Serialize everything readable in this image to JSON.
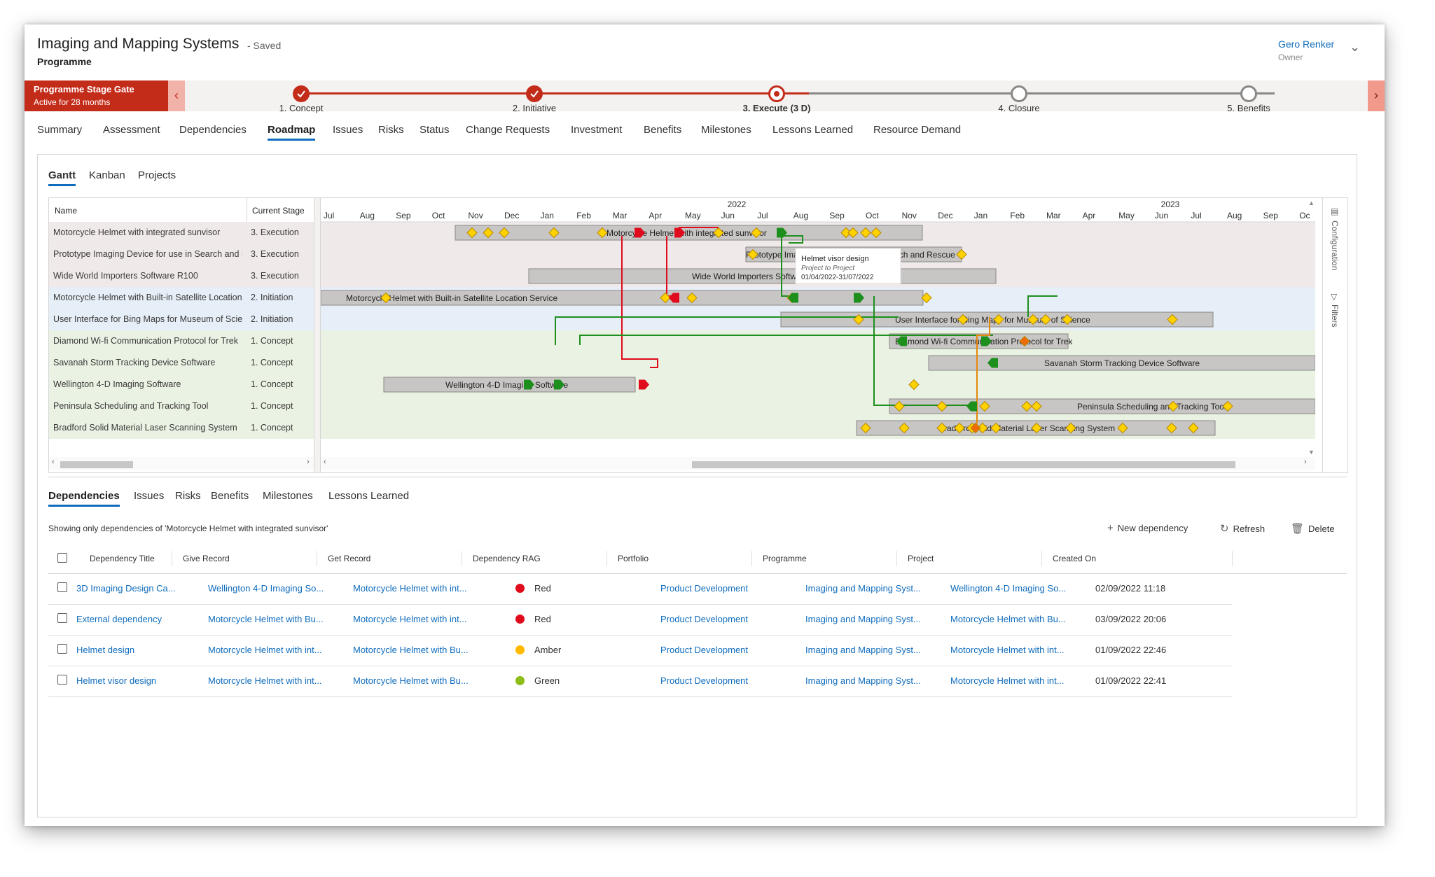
{
  "header": {
    "title": "Imaging and Mapping Systems",
    "saved": "- Saved",
    "subtitle": "Programme",
    "owner_name": "Gero Renker",
    "owner_role": "Owner"
  },
  "stage_gate": {
    "title": "Programme Stage Gate",
    "subtitle": "Active for 28 months",
    "stages": [
      {
        "label": "1. Concept",
        "state": "done"
      },
      {
        "label": "2. Initiative",
        "state": "done"
      },
      {
        "label": "3. Execute  (3 D)",
        "state": "active"
      },
      {
        "label": "4. Closure",
        "state": "pending"
      },
      {
        "label": "5. Benefits",
        "state": "pending"
      }
    ]
  },
  "main_tabs": [
    "Summary",
    "Assessment",
    "Dependencies",
    "Roadmap",
    "Issues",
    "Risks",
    "Status",
    "Change Requests",
    "Investment",
    "Benefits",
    "Milestones",
    "Lessons Learned",
    "Resource Demand"
  ],
  "active_main_tab": "Roadmap",
  "sub_tabs": [
    "Gantt",
    "Kanban",
    "Projects"
  ],
  "gantt": {
    "col_name": "Name",
    "col_stage": "Current Stage",
    "years": [
      "2022",
      "2023"
    ],
    "months": [
      "Jul",
      "Aug",
      "Sep",
      "Oct",
      "Nov",
      "Dec",
      "Jan",
      "Feb",
      "Mar",
      "Apr",
      "May",
      "Jun",
      "Jul",
      "Aug",
      "Sep",
      "Oct",
      "Nov",
      "Dec",
      "Jan",
      "Feb",
      "Mar",
      "Apr",
      "May",
      "Jun",
      "Jul",
      "Aug",
      "Sep",
      "Oc"
    ],
    "rows": [
      {
        "name": "Motorcycle Helmet with integrated sunvisor",
        "stage": "3. Execution",
        "bar_label": "Motorcycle Helmet with integrated sunvisor"
      },
      {
        "name": "Prototype Imaging Device for use in Search and Rescue",
        "stage": "3. Execution",
        "bar_label": "Prototype Imaging Device for use in Search and Rescue"
      },
      {
        "name": "Wide World Importers Software R100",
        "stage": "3. Execution",
        "bar_label": "Wide World Importers Software R100"
      },
      {
        "name": "Motorcycle Helmet with Built-in Satellite Location Service",
        "stage": "2. Initiation",
        "bar_label": "Motorcycle Helmet with Built-in Satellite Location Service"
      },
      {
        "name": "User Interface for Bing Maps for Museum of Science",
        "stage": "2. Initiation",
        "bar_label": "User Interface for Bing Maps for Museum of Science"
      },
      {
        "name": "Diamond Wi-fi Communication Protocol for Trek",
        "stage": "1. Concept",
        "bar_label": "Diamond Wi-fi Communication Protocol for Trek"
      },
      {
        "name": "Savanah Storm Tracking Device Software",
        "stage": "1. Concept",
        "bar_label": "Savanah Storm Tracking Device Software"
      },
      {
        "name": "Wellington 4-D Imaging Software",
        "stage": "1. Concept",
        "bar_label": "Wellington 4-D Imaging Software"
      },
      {
        "name": "Peninsula Scheduling and Tracking Tool",
        "stage": "1. Concept",
        "bar_label": "Peninsula Scheduling and Tracking Tool"
      },
      {
        "name": "Bradford Solid Material Laser Scanning System",
        "stage": "1. Concept",
        "bar_label": "Bradford Solid Material Laser Scanning System"
      }
    ],
    "tooltip": {
      "title": "Helmet visor design",
      "line1": "Project to Project",
      "line2": "01/04/2022-31/07/2022"
    },
    "side_configuration": "Configuration",
    "side_filters": "Filters"
  },
  "lower_tabs": [
    "Dependencies",
    "Issues",
    "Risks",
    "Benefits",
    "Milestones",
    "Lessons Learned"
  ],
  "showing_text": "Showing only dependencies of 'Motorcycle Helmet with integrated sunvisor'",
  "commands": {
    "new": "New dependency",
    "refresh": "Refresh",
    "delete": "Delete"
  },
  "grid": {
    "headers": [
      "Dependency Title",
      "Give Record",
      "Get Record",
      "Dependency RAG",
      "Portfolio",
      "Programme",
      "Project",
      "Created On"
    ],
    "rows": [
      {
        "title": "3D Imaging Design Ca...",
        "give": "Wellington 4-D Imaging So...",
        "get": "Motorcycle Helmet with int...",
        "rag": "Red",
        "rag_color": "#e00b1c",
        "portfolio": "Product Development",
        "programme": "Imaging and Mapping Syst...",
        "project": "Wellington 4-D Imaging So...",
        "created": "02/09/2022 11:18"
      },
      {
        "title": "External dependency",
        "give": "Motorcycle Helmet with Bu...",
        "get": "Motorcycle Helmet with int...",
        "rag": "Red",
        "rag_color": "#e00b1c",
        "portfolio": "Product Development",
        "programme": "Imaging and Mapping Syst...",
        "project": "Motorcycle Helmet with Bu...",
        "created": "03/09/2022 20:06"
      },
      {
        "title": "Helmet design",
        "give": "Motorcycle Helmet with int...",
        "get": "Motorcycle Helmet with Bu...",
        "rag": "Amber",
        "rag_color": "#ffb900",
        "portfolio": "Product Development",
        "programme": "Imaging and Mapping Syst...",
        "project": "Motorcycle Helmet with int...",
        "created": "01/09/2022 22:46"
      },
      {
        "title": "Helmet visor design",
        "give": "Motorcycle Helmet with int...",
        "get": "Motorcycle Helmet with Bu...",
        "rag": "Green",
        "rag_color": "#8cbd18",
        "portfolio": "Product Development",
        "programme": "Imaging and Mapping Syst...",
        "project": "Motorcycle Helmet with int...",
        "created": "01/09/2022 22:41"
      }
    ]
  },
  "colors": {
    "accent": "#0f6cbd",
    "gate_red": "#c42c1a",
    "link": "#0f6cbd"
  }
}
